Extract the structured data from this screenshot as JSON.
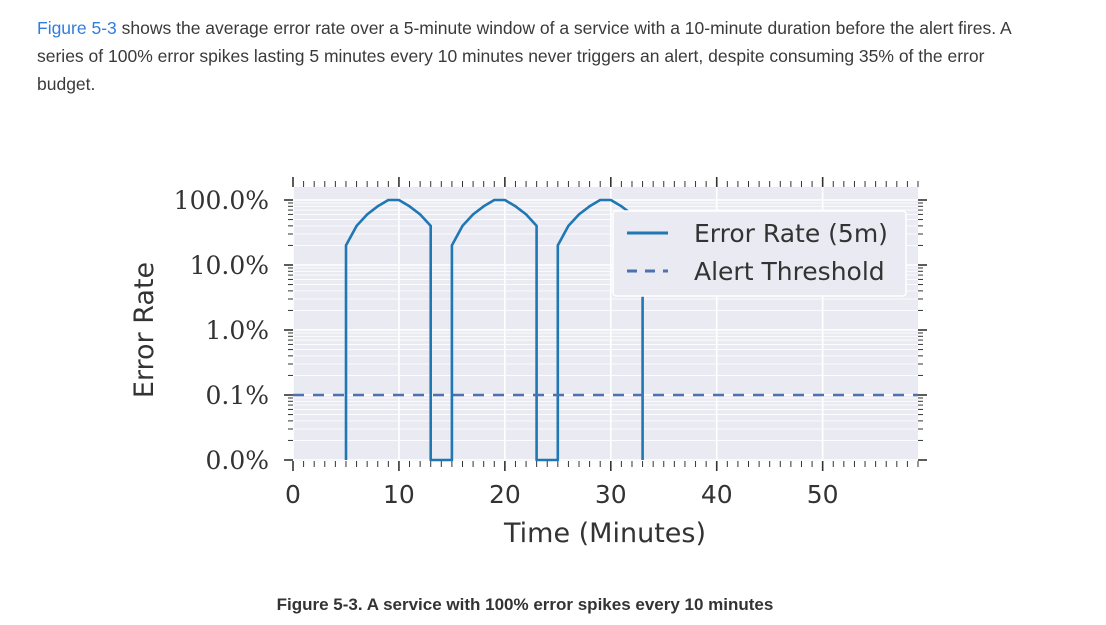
{
  "paragraph": {
    "link_text": "Figure 5-3",
    "text": " shows the average error rate over a 5-minute window of a service with a 10-minute duration before the alert fires. A series of 100% error spikes lasting 5 minutes every 10 minutes never triggers an alert, despite consuming 35% of the error budget."
  },
  "caption": "Figure 5-3. A service with 100% error spikes every 10 minutes",
  "chart_data": {
    "type": "line",
    "xlabel": "Time (Minutes)",
    "ylabel": "Error Rate",
    "xlim": [
      0,
      59
    ],
    "ylim_labels": [
      "0.0%",
      "0.1%",
      "1.0%",
      "10.0%",
      "100.0%"
    ],
    "y_scale": "log",
    "x_ticks": [
      "0",
      "10",
      "20",
      "30",
      "40",
      "50"
    ],
    "x_tick_values": [
      0,
      10,
      20,
      30,
      40,
      50
    ],
    "grid": true,
    "legend_position": "top-right",
    "colors": {
      "error_rate": "#1f77b4",
      "threshold": "#4c72b0",
      "background": "#eaeaf2"
    },
    "series": [
      {
        "name": "Error Rate (5m)",
        "style": "solid",
        "points": [
          [
            5,
            0.0
          ],
          [
            5,
            0.2
          ],
          [
            6,
            0.4
          ],
          [
            7,
            0.6
          ],
          [
            8,
            0.8
          ],
          [
            9,
            1.0
          ],
          [
            10,
            1.0
          ],
          [
            11,
            0.8
          ],
          [
            12,
            0.6
          ],
          [
            13,
            0.4
          ],
          [
            13,
            0.0
          ],
          [
            15,
            0.0
          ],
          [
            15,
            0.2
          ],
          [
            16,
            0.4
          ],
          [
            17,
            0.6
          ],
          [
            18,
            0.8
          ],
          [
            19,
            1.0
          ],
          [
            20,
            1.0
          ],
          [
            21,
            0.8
          ],
          [
            22,
            0.6
          ],
          [
            23,
            0.4
          ],
          [
            23,
            0.0
          ],
          [
            25,
            0.0
          ],
          [
            25,
            0.2
          ],
          [
            26,
            0.4
          ],
          [
            27,
            0.6
          ],
          [
            28,
            0.8
          ],
          [
            29,
            1.0
          ],
          [
            30,
            1.0
          ],
          [
            31,
            0.8
          ],
          [
            32,
            0.6
          ],
          [
            33,
            0.4
          ],
          [
            33,
            0.0
          ]
        ]
      },
      {
        "name": "Alert Threshold",
        "style": "dashed",
        "points": [
          [
            0,
            0.001
          ],
          [
            59,
            0.001
          ]
        ]
      }
    ]
  }
}
